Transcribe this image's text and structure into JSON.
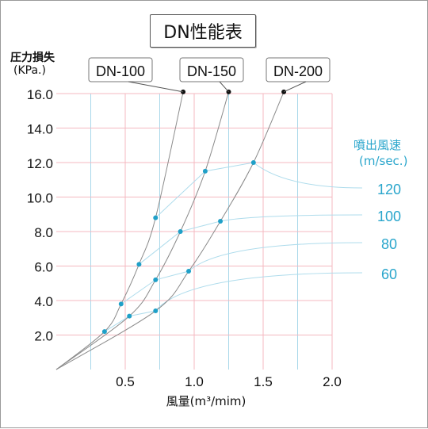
{
  "chart_data": {
    "type": "line",
    "title": "DN性能表",
    "ylabel": "圧力損失",
    "ylabel_unit": "(KPa.)",
    "xlabel": "風量(m³/mim)",
    "xlim": [
      0,
      2.0
    ],
    "ylim": [
      0,
      16.0
    ],
    "x_ticks": [
      "0.5",
      "1.0",
      "1.5",
      "2.0"
    ],
    "y_ticks": [
      "2.0",
      "4.0",
      "6.0",
      "8.0",
      "10.0",
      "12.0",
      "14.0",
      "16.0"
    ],
    "grid": true,
    "series": [
      {
        "name": "DN-100",
        "x": [
          0.35,
          0.47,
          0.6,
          0.72,
          0.92
        ],
        "y": [
          2.2,
          3.8,
          6.1,
          8.8,
          16.1
        ]
      },
      {
        "name": "DN-150",
        "x": [
          0.53,
          0.72,
          0.9,
          1.08,
          1.25
        ],
        "y": [
          3.1,
          5.2,
          8.0,
          11.5,
          16.1
        ]
      },
      {
        "name": "DN-200",
        "x": [
          0.72,
          0.96,
          1.19,
          1.43,
          1.65
        ],
        "y": [
          3.4,
          5.7,
          8.6,
          12.0,
          16.1
        ]
      }
    ],
    "speed_legend": {
      "title_line1": "噴出風速",
      "title_line2": "(m/sec.)",
      "labels": [
        "60",
        "80",
        "100",
        "120"
      ],
      "points": [
        {
          "label": "60",
          "x": [
            0.35,
            0.53,
            0.72
          ]
        },
        {
          "label": "80",
          "x": [
            0.47,
            0.72,
            0.96
          ]
        },
        {
          "label": "100",
          "x": [
            0.6,
            0.9,
            1.19
          ]
        },
        {
          "label": "120",
          "x": [
            0.72,
            1.08,
            1.43
          ]
        }
      ]
    },
    "colors": {
      "grid_red": "#f4b8c0",
      "grid_blue": "#a9d8ea",
      "curve": "#8a8a8a",
      "point": "#1fa0c8",
      "speed_line": "#aedcec",
      "speed_text": "#2aa6cc"
    }
  }
}
